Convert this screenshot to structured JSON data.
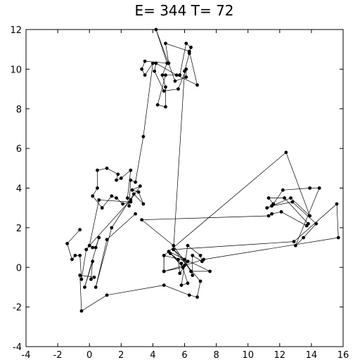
{
  "chart_data": {
    "type": "line",
    "title": "E= 344 T= 72",
    "xlabel": "",
    "ylabel": "",
    "xlim": [
      -4,
      16
    ],
    "ylim": [
      -4,
      12
    ],
    "xticks": [
      -4,
      -2,
      0,
      2,
      4,
      6,
      8,
      10,
      12,
      14,
      16
    ],
    "yticks": [
      -4,
      -2,
      0,
      2,
      4,
      6,
      8,
      10,
      12
    ],
    "xtick_labels": [
      "-4",
      "-2",
      "0",
      "2",
      "4",
      "6",
      "8",
      "10",
      "12",
      "14",
      "16"
    ],
    "ytick_labels": [
      "-4",
      "-2",
      "0",
      "2",
      "4",
      "6",
      "8",
      "10",
      "12"
    ],
    "grid": false,
    "marker": "dot",
    "line_color": "#000000",
    "path": [
      [
        -0.6,
        1.9
      ],
      [
        -1.4,
        1.2
      ],
      [
        -1.1,
        0.4
      ],
      [
        -0.9,
        0.6
      ],
      [
        -0.6,
        0.6
      ],
      [
        -0.5,
        -0.6
      ],
      [
        -0.2,
        0.9
      ],
      [
        0.0,
        1.1
      ],
      [
        0.2,
        1.0
      ],
      [
        0.4,
        1.0
      ],
      [
        0.6,
        1.5
      ],
      [
        -0.3,
        -1.0
      ],
      [
        0.2,
        0.3
      ],
      [
        0.1,
        -0.6
      ],
      [
        0.3,
        -0.5
      ],
      [
        -0.6,
        -0.4
      ],
      [
        -0.5,
        -2.2
      ],
      [
        1.1,
        -1.4
      ],
      [
        4.7,
        -0.9
      ],
      [
        6.3,
        -1.4
      ],
      [
        6.8,
        -1.5
      ],
      [
        7.0,
        -0.7
      ],
      [
        5.3,
        0.9
      ],
      [
        6.0,
        0.4
      ],
      [
        6.5,
        -0.4
      ],
      [
        6.5,
        0.6
      ],
      [
        7.1,
        0.3
      ],
      [
        7.0,
        0.6
      ],
      [
        6.2,
        1.1
      ],
      [
        5.8,
        -0.9
      ],
      [
        6.2,
        -0.8
      ],
      [
        5.8,
        0.2
      ],
      [
        5.1,
        0.7
      ],
      [
        5.6,
        0.4
      ],
      [
        5.7,
        -0.3
      ],
      [
        6.2,
        0.3
      ],
      [
        4.7,
        0.6
      ],
      [
        4.7,
        -0.2
      ],
      [
        5.9,
        0.0
      ],
      [
        5.0,
        0.8
      ],
      [
        7.6,
        -0.2
      ],
      [
        6.4,
        -0.2
      ],
      [
        5.3,
        1.1
      ],
      [
        3.3,
        2.4
      ],
      [
        11.3,
        2.6
      ],
      [
        11.5,
        2.7
      ],
      [
        12.1,
        2.8
      ],
      [
        13.7,
        2.1
      ],
      [
        13.8,
        2.2
      ],
      [
        12.3,
        3.5
      ],
      [
        11.3,
        3.5
      ],
      [
        11.6,
        3.2
      ],
      [
        12.2,
        3.9
      ],
      [
        13.9,
        4.0
      ],
      [
        14.5,
        4.0
      ],
      [
        13.0,
        1.1
      ],
      [
        13.5,
        1.5
      ],
      [
        14.3,
        2.2
      ],
      [
        12.8,
        3.3
      ],
      [
        11.5,
        3.1
      ],
      [
        11.2,
        3.0
      ],
      [
        12.7,
        3.5
      ],
      [
        13.9,
        2.6
      ],
      [
        12.4,
        5.8
      ],
      [
        4.7,
        0.6
      ],
      [
        4.7,
        -0.2
      ],
      [
        6.0,
        0.1
      ],
      [
        7.2,
        0.4
      ],
      [
        15.7,
        1.5
      ],
      [
        15.6,
        3.2
      ],
      [
        12.9,
        1.3
      ],
      [
        5.3,
        0.9
      ],
      [
        6.0,
        9.9
      ],
      [
        6.3,
        10.8
      ],
      [
        6.4,
        11.1
      ],
      [
        6.1,
        11.3
      ],
      [
        5.7,
        9.7
      ],
      [
        4.8,
        9.7
      ],
      [
        4.3,
        8.2
      ],
      [
        4.8,
        8.1
      ],
      [
        4.8,
        9.1
      ],
      [
        4.6,
        9.7
      ],
      [
        4.9,
        10.3
      ],
      [
        4.2,
        12.0
      ],
      [
        5.4,
        9.4
      ],
      [
        6.1,
        9.6
      ],
      [
        6.1,
        10.0
      ],
      [
        5.6,
        9.0
      ],
      [
        4.7,
        8.9
      ],
      [
        4.1,
        9.9
      ],
      [
        4.2,
        10.3
      ],
      [
        5.5,
        9.7
      ],
      [
        6.8,
        9.2
      ],
      [
        6.3,
        10.9
      ],
      [
        4.8,
        11.3
      ],
      [
        5.0,
        10.3
      ],
      [
        3.5,
        10.4
      ],
      [
        3.3,
        10.0
      ],
      [
        3.5,
        9.7
      ],
      [
        4.0,
        10.3
      ],
      [
        3.4,
        6.6
      ],
      [
        2.9,
        4.3
      ],
      [
        2.6,
        4.4
      ],
      [
        2.5,
        3.1
      ],
      [
        2.4,
        3.5
      ],
      [
        2.6,
        4.9
      ],
      [
        2.0,
        4.5
      ],
      [
        1.7,
        4.4
      ],
      [
        1.8,
        4.7
      ],
      [
        1.1,
        5.0
      ],
      [
        0.5,
        4.9
      ],
      [
        0.5,
        4.0
      ],
      [
        0.2,
        3.6
      ],
      [
        0.8,
        3.0
      ],
      [
        1.4,
        3.6
      ],
      [
        1.7,
        3.5
      ],
      [
        2.1,
        3.2
      ],
      [
        2.6,
        3.3
      ],
      [
        0.6,
        3.4
      ],
      [
        0.0,
        1.1
      ],
      [
        2.6,
        3.4
      ],
      [
        3.2,
        4.1
      ],
      [
        2.7,
        3.9
      ],
      [
        3.1,
        3.8
      ],
      [
        3.4,
        3.2
      ],
      [
        2.8,
        3.7
      ],
      [
        1.4,
        2.0
      ],
      [
        0.4,
        -1.0
      ],
      [
        1.1,
        1.4
      ],
      [
        2.9,
        2.7
      ]
    ]
  }
}
